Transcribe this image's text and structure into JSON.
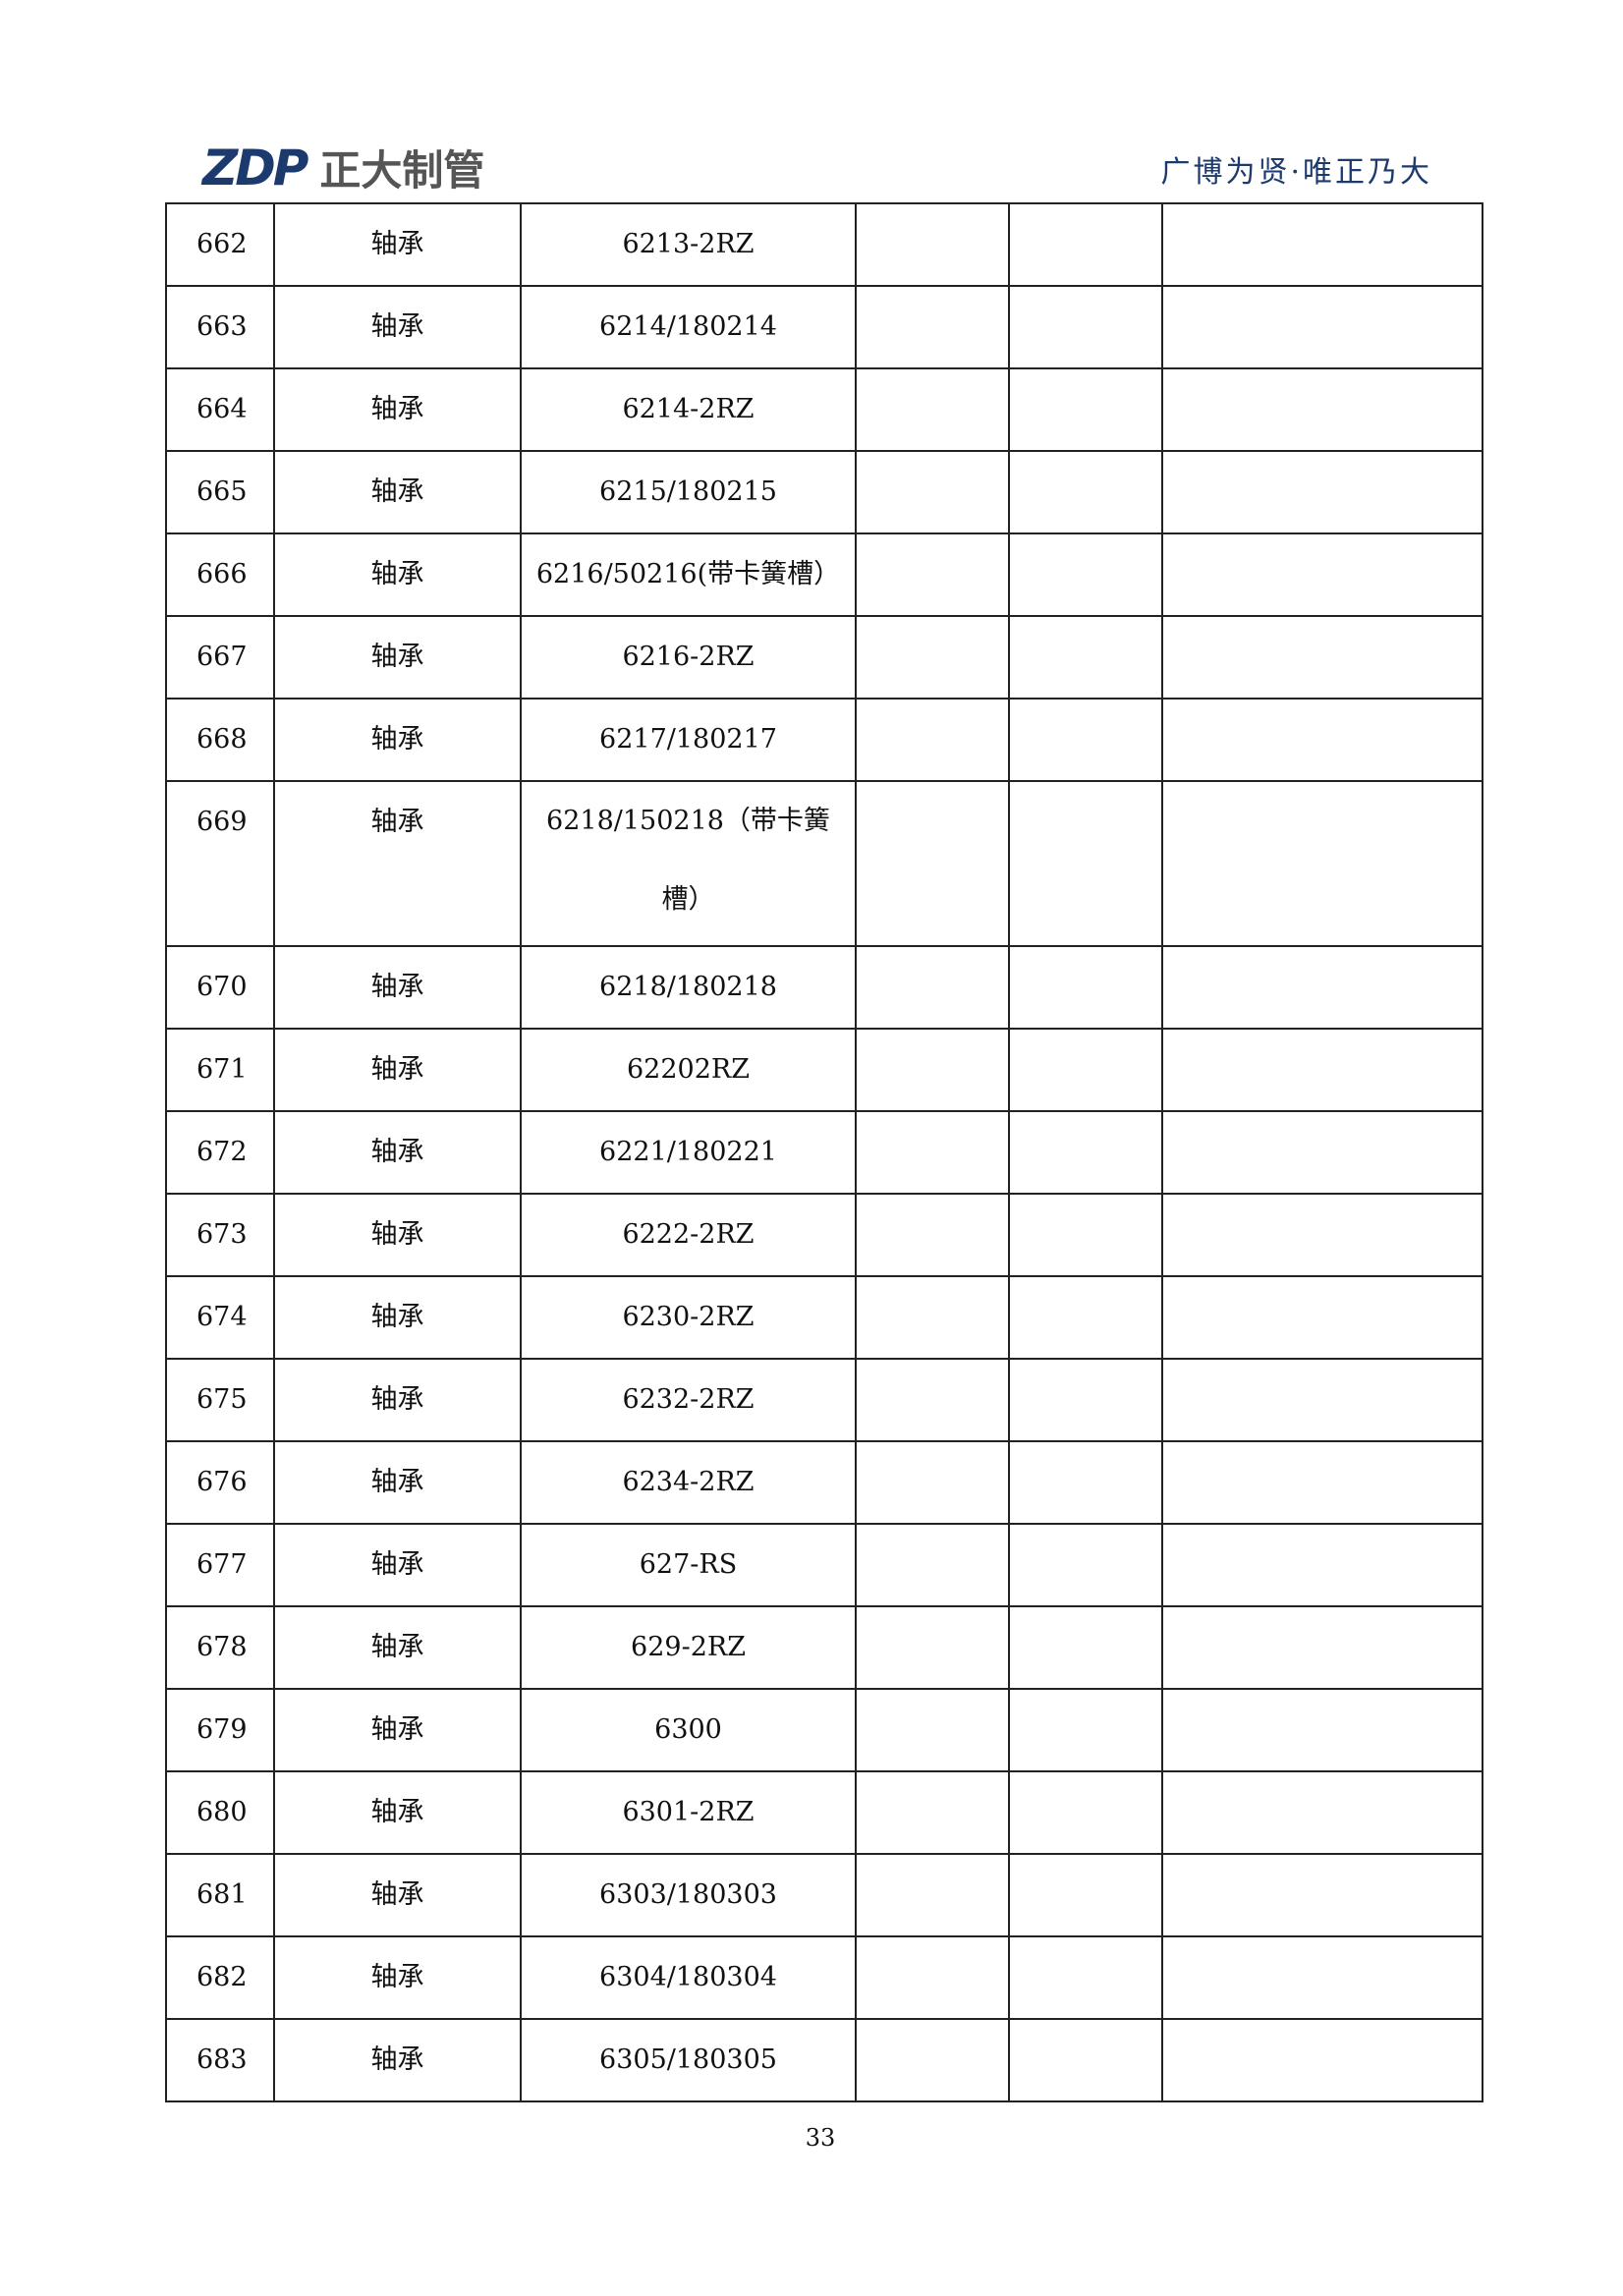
{
  "header": {
    "logo_mark": "ZDP",
    "logo_text": "正大制管",
    "slogan": "广博为贤·唯正乃大"
  },
  "rows": [
    {
      "no": "662",
      "name": "轴承",
      "spec": "6213-2RZ"
    },
    {
      "no": "663",
      "name": "轴承",
      "spec": "6214/180214"
    },
    {
      "no": "664",
      "name": "轴承",
      "spec": "6214-2RZ"
    },
    {
      "no": "665",
      "name": "轴承",
      "spec": "6215/180215"
    },
    {
      "no": "666",
      "name": "轴承",
      "spec": "6216/50216(带卡簧槽）"
    },
    {
      "no": "667",
      "name": "轴承",
      "spec": "6216-2RZ"
    },
    {
      "no": "668",
      "name": "轴承",
      "spec": "6217/180217"
    },
    {
      "no": "669",
      "name": "轴承",
      "spec": "6218/150218（带卡簧槽）"
    },
    {
      "no": "670",
      "name": "轴承",
      "spec": "6218/180218"
    },
    {
      "no": "671",
      "name": "轴承",
      "spec": "62202RZ"
    },
    {
      "no": "672",
      "name": "轴承",
      "spec": "6221/180221"
    },
    {
      "no": "673",
      "name": "轴承",
      "spec": "6222-2RZ"
    },
    {
      "no": "674",
      "name": "轴承",
      "spec": "6230-2RZ"
    },
    {
      "no": "675",
      "name": "轴承",
      "spec": "6232-2RZ"
    },
    {
      "no": "676",
      "name": "轴承",
      "spec": "6234-2RZ"
    },
    {
      "no": "677",
      "name": "轴承",
      "spec": "627-RS"
    },
    {
      "no": "678",
      "name": "轴承",
      "spec": "629-2RZ"
    },
    {
      "no": "679",
      "name": "轴承",
      "spec": "6300"
    },
    {
      "no": "680",
      "name": "轴承",
      "spec": "6301-2RZ"
    },
    {
      "no": "681",
      "name": "轴承",
      "spec": "6303/180303"
    },
    {
      "no": "682",
      "name": "轴承",
      "spec": "6304/180304"
    },
    {
      "no": "683",
      "name": "轴承",
      "spec": "6305/180305"
    }
  ],
  "footer": {
    "page_number": "33"
  }
}
